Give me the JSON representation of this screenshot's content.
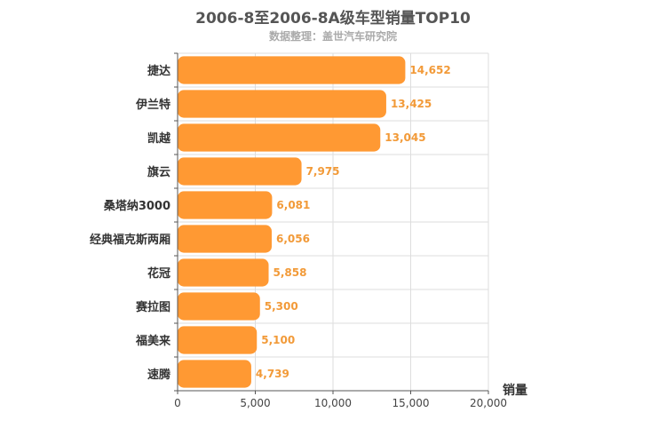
{
  "chart_data": {
    "type": "bar",
    "orientation": "horizontal",
    "title": "2006-8至2006-8A级车型销量TOP10",
    "subtitle": "数据整理：盖世汽车研究院",
    "categories": [
      "捷达",
      "伊兰特",
      "凯越",
      "旗云",
      "桑塔纳3000",
      "经典福克斯两厢",
      "花冠",
      "赛拉图",
      "福美来",
      "速腾"
    ],
    "values": [
      14652,
      13425,
      13045,
      7975,
      6081,
      6056,
      5858,
      5300,
      5100,
      4739
    ],
    "value_labels": [
      "14,652",
      "13,425",
      "13,045",
      "7,975",
      "6,081",
      "6,056",
      "5,858",
      "5,300",
      "5,100",
      "4,739"
    ],
    "xlabel": "销量",
    "xlim": [
      0,
      20000
    ],
    "x_ticks": [
      0,
      5000,
      10000,
      15000,
      20000
    ],
    "x_tick_labels": [
      "0",
      "5,000",
      "10,000",
      "15,000",
      "20,000"
    ],
    "grid": true,
    "bar_color": "#ff9933",
    "label_color": "#f29a38"
  }
}
